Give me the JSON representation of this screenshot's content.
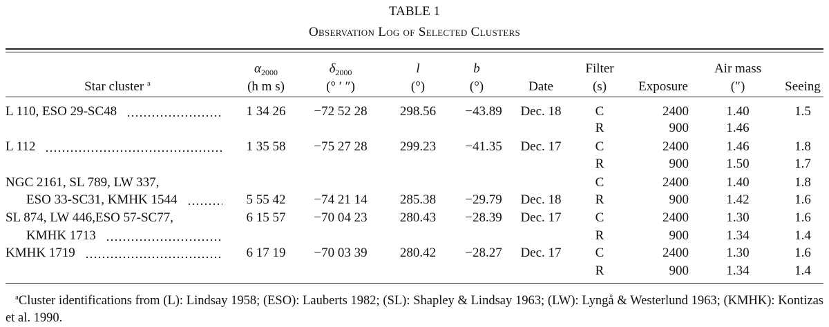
{
  "title": "TABLE 1",
  "subtitle": "Observation Log of Selected Clusters",
  "header": {
    "cluster": {
      "text": "Star cluster",
      "note": "a"
    },
    "ra": {
      "symbol": "α",
      "sub": "2000",
      "unit": "(h m s)"
    },
    "dec": {
      "symbol": "δ",
      "sub": "2000",
      "unit": "(° ′ ″)"
    },
    "l": {
      "symbol": "l",
      "unit": "(°)"
    },
    "b": {
      "symbol": "b",
      "unit": "(°)"
    },
    "date": "Date",
    "filter": {
      "line1": "Filter",
      "line2": "(s)"
    },
    "exposure": "Exposure",
    "airmass": {
      "line1": "Air mass",
      "line2": "(″)"
    },
    "seeing": "Seeing"
  },
  "table": {
    "rows": [
      {
        "cluster": "L 110, ESO 29-SC48",
        "ra": "1 34 26",
        "dec": "−72 52 28",
        "l": "298.56",
        "b": "−43.89",
        "date": "Dec. 18",
        "filter": "C",
        "exposure": "2400",
        "airmass": "1.40",
        "seeing": "1.5"
      },
      {
        "filter": "R",
        "exposure": "900",
        "airmass": "1.46"
      },
      {
        "cluster": "L 112",
        "ra": "1 35 58",
        "dec": "−75 27 28",
        "l": "299.23",
        "b": "−41.35",
        "date": "Dec. 17",
        "filter": "C",
        "exposure": "2400",
        "airmass": "1.46",
        "seeing": "1.8"
      },
      {
        "filter": "R",
        "exposure": "900",
        "airmass": "1.50",
        "seeing": "1.7"
      },
      {
        "cluster": "NGC 2161, SL 789, LW 337,",
        "filter": "C",
        "exposure": "2400",
        "airmass": "1.40",
        "seeing": "1.8"
      },
      {
        "cluster": "ESO 33-SC31, KMHK 1544",
        "ra": "5 55 42",
        "dec": "−74 21 14",
        "l": "285.38",
        "b": "−29.79",
        "date": "Dec. 18",
        "filter": "R",
        "exposure": "900",
        "airmass": "1.42",
        "seeing": "1.6"
      },
      {
        "cluster": "SL 874, LW 446,ESO 57-SC77,",
        "ra": "6 15 57",
        "dec": "−70 04 23",
        "l": "280.43",
        "b": "−28.39",
        "date": "Dec. 17",
        "filter": "C",
        "exposure": "2400",
        "airmass": "1.30",
        "seeing": "1.6"
      },
      {
        "cluster": "KMHK 1713",
        "filter": "R",
        "exposure": "900",
        "airmass": "1.34",
        "seeing": "1.4"
      },
      {
        "cluster": "KMHK 1719",
        "ra": "6 17 19",
        "dec": "−70 03 39",
        "l": "280.42",
        "b": "−28.27",
        "date": "Dec. 17",
        "filter": "C",
        "exposure": "2400",
        "airmass": "1.30",
        "seeing": "1.6"
      },
      {
        "filter": "R",
        "exposure": "900",
        "airmass": "1.34",
        "seeing": "1.4"
      }
    ]
  },
  "footnote": {
    "mark": "a",
    "text": "Cluster identifications from (L): Lindsay 1958; (ESO): Lauberts 1982; (SL): Shapley & Lindsay 1963; (LW): Lyngå & Westerlund 1963; (KMHK): Kontizas et al. 1990."
  }
}
